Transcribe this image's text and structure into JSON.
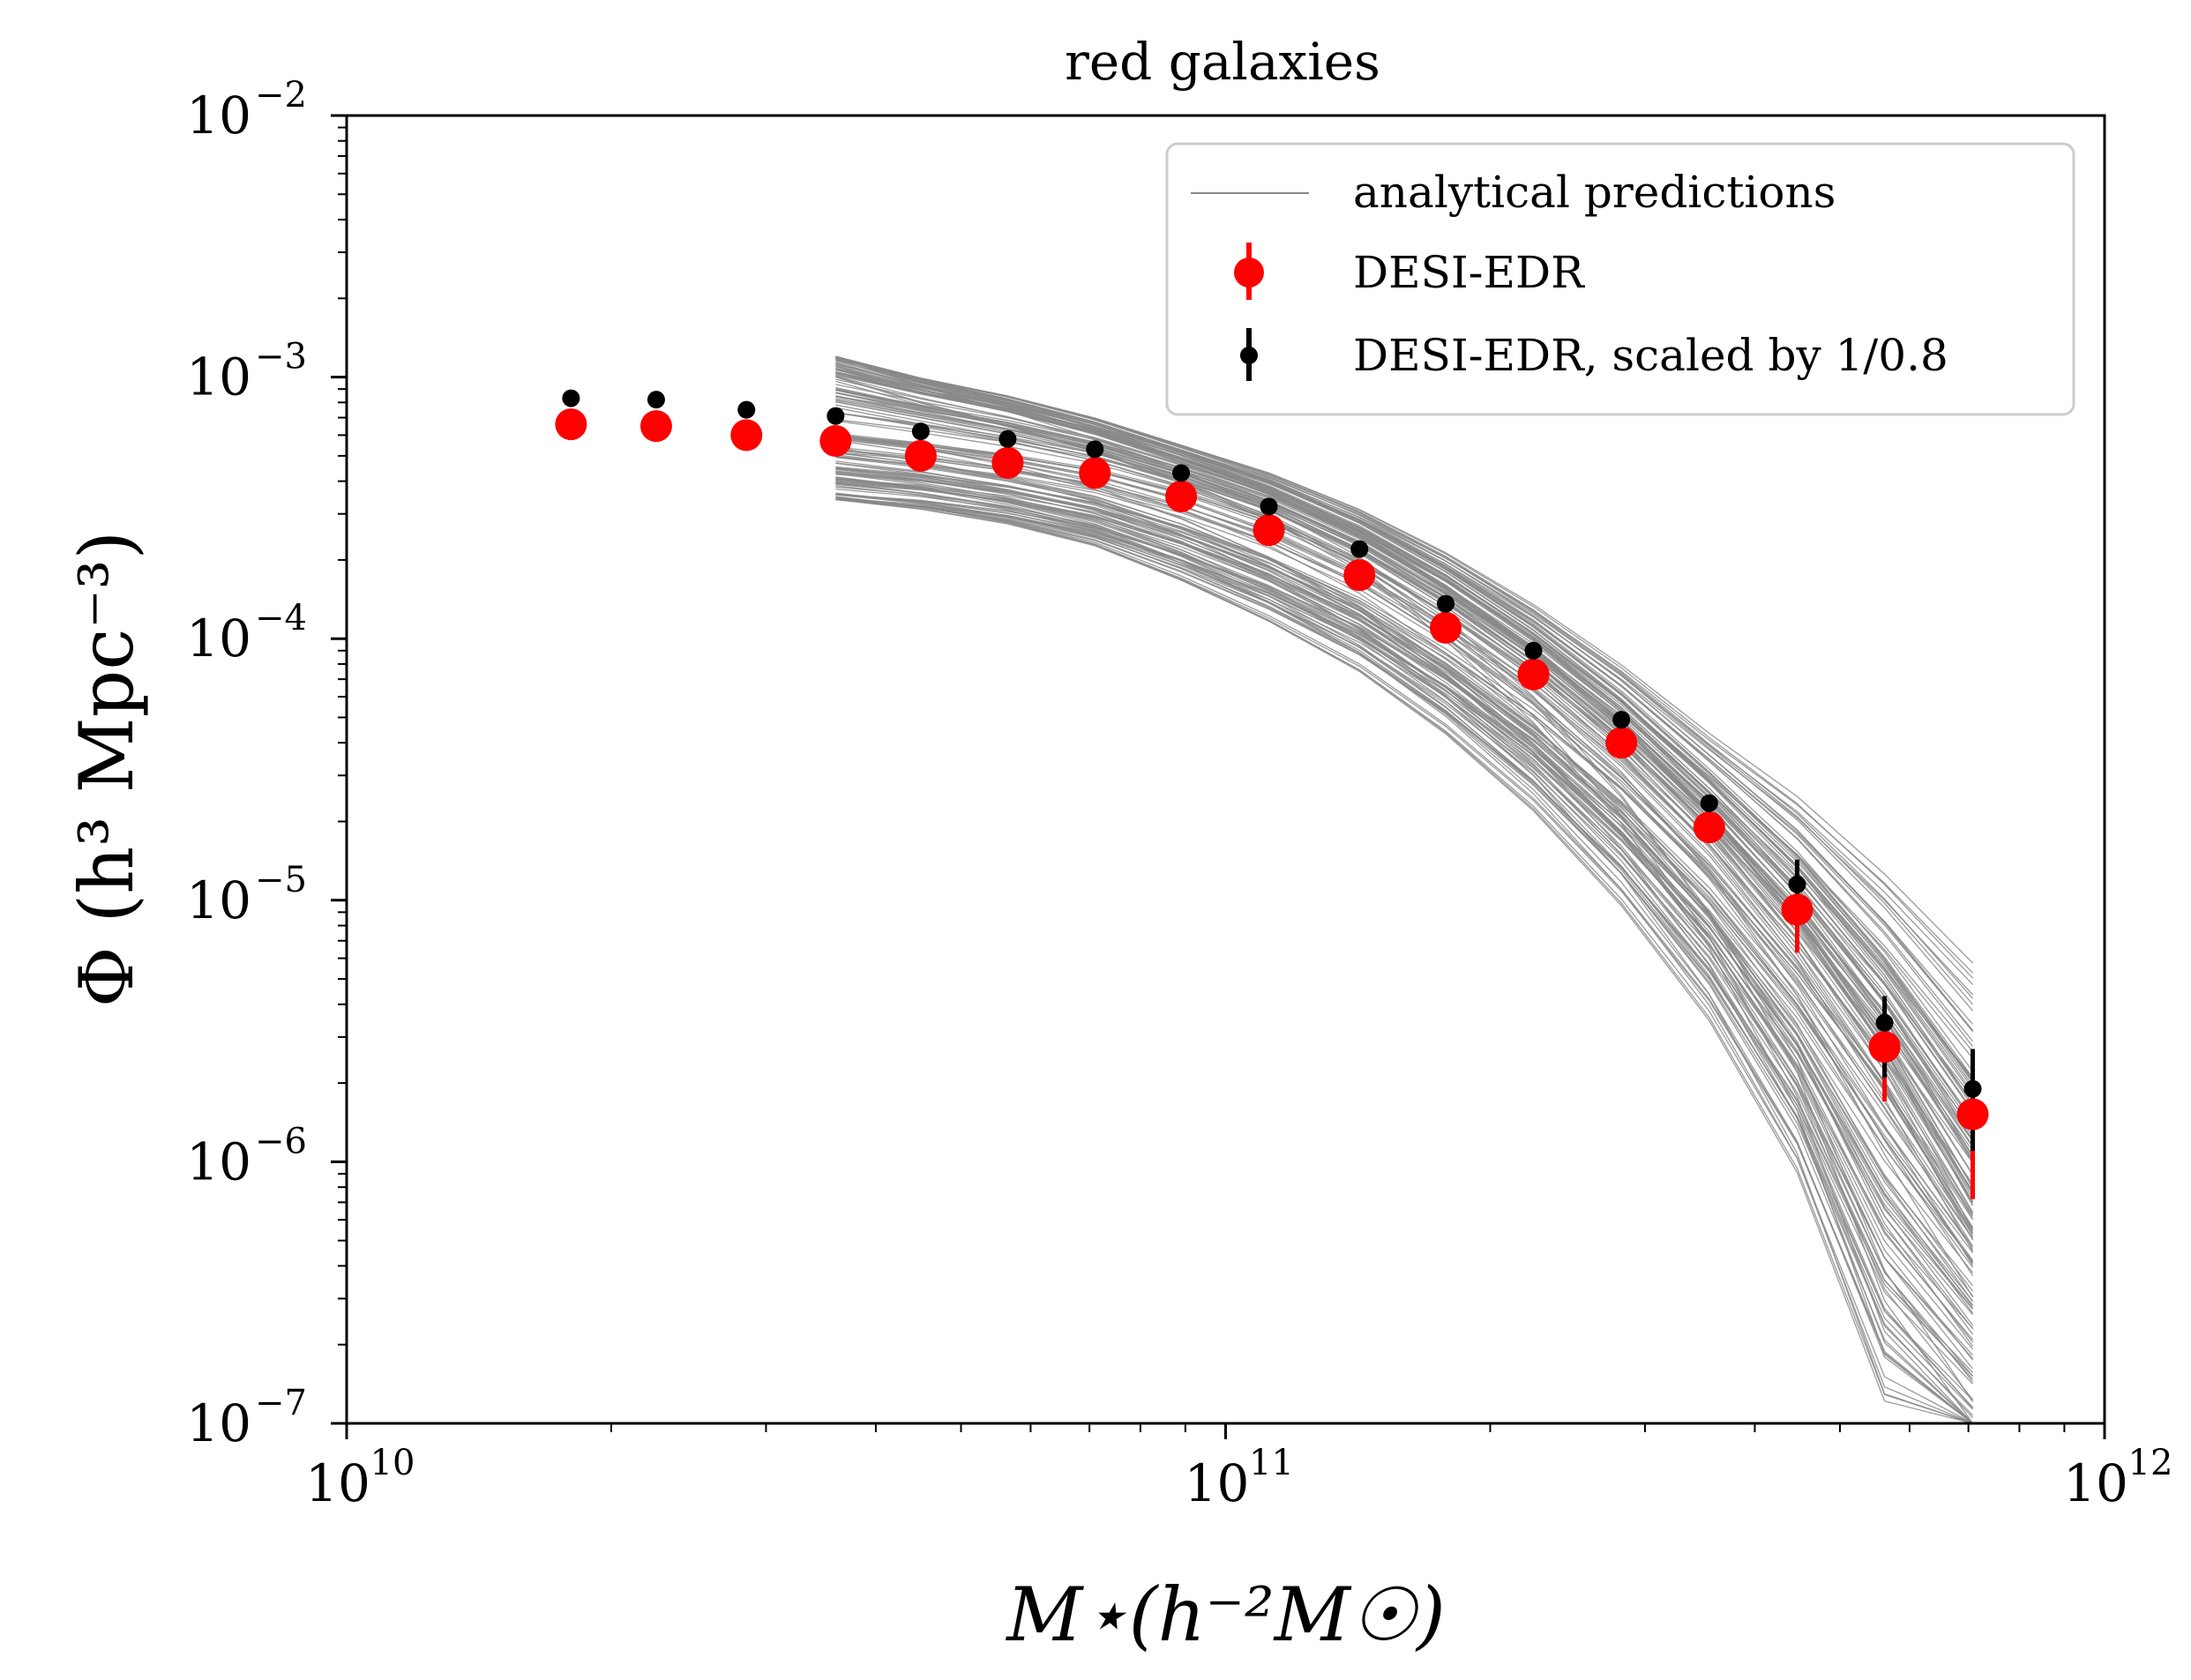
{
  "chart_data": {
    "type": "scatter",
    "title": "red galaxies",
    "xlabel": "M⋆(h⁻²M☉)",
    "ylabel": "Φ (h³ Mpc⁻³)",
    "xscale": "log",
    "yscale": "log",
    "xlim": [
      10000000000.0,
      1000000000000.0
    ],
    "ylim": [
      1e-07,
      0.01
    ],
    "grid": false,
    "legend_position": "top-right",
    "x_ticks": [
      {
        "value": 10000000000.0,
        "base": "10",
        "exp": "10"
      },
      {
        "value": 100000000000.0,
        "base": "10",
        "exp": "11"
      },
      {
        "value": 1000000000000.0,
        "base": "10",
        "exp": "12"
      }
    ],
    "y_ticks": [
      {
        "value": 1e-07,
        "base": "10",
        "exp": "−7"
      },
      {
        "value": 1e-06,
        "base": "10",
        "exp": "−6"
      },
      {
        "value": 1e-05,
        "base": "10",
        "exp": "−5"
      },
      {
        "value": 0.0001,
        "base": "10",
        "exp": "−4"
      },
      {
        "value": 0.001,
        "base": "10",
        "exp": "−3"
      },
      {
        "value": 0.01,
        "base": "10",
        "exp": "−2"
      }
    ],
    "legend": [
      {
        "label": "analytical predictions",
        "series": "analytical"
      },
      {
        "label": "DESI-EDR",
        "series": "desi"
      },
      {
        "label": "DESI-EDR, scaled by 1/0.8",
        "series": "desi_scaled"
      }
    ],
    "colors": {
      "analytical": "#888888",
      "desi": "#ff0000",
      "desi_scaled": "#000000"
    },
    "series": [
      {
        "name": "DESI-EDR",
        "key": "desi",
        "x": [
          18000000000.0,
          22500000000.0,
          28500000000.0,
          36000000000.0,
          45000000000.0,
          56500000000.0,
          71000000000.0,
          89000000000.0,
          112000000000.0,
          142000000000.0,
          178000000000.0,
          224000000000.0,
          282000000000.0,
          355000000000.0,
          447000000000.0,
          562000000000.0,
          708000000000.0
        ],
        "y": [
          0.00066,
          0.00065,
          0.0006,
          0.00057,
          0.0005,
          0.00047,
          0.00043,
          0.00035,
          0.00026,
          0.000175,
          0.00011,
          7.3e-05,
          4e-05,
          1.9e-05,
          9.2e-06,
          2.75e-06,
          1.52e-06
        ],
        "y_err_low": [
          0,
          0,
          0,
          0,
          0,
          0,
          0,
          0,
          0,
          0,
          0,
          0,
          0,
          0,
          2.9e-06,
          1.05e-06,
          8e-07
        ],
        "y_err_high": [
          0,
          0,
          0,
          0,
          0,
          0,
          0,
          0,
          0,
          0,
          0,
          0,
          0,
          0,
          3.5e-06,
          6e-07,
          4.5e-07
        ]
      },
      {
        "name": "DESI-EDR, scaled by 1/0.8",
        "key": "desi_scaled",
        "x": [
          18000000000.0,
          22500000000.0,
          28500000000.0,
          36000000000.0,
          45000000000.0,
          56500000000.0,
          71000000000.0,
          89000000000.0,
          112000000000.0,
          142000000000.0,
          178000000000.0,
          224000000000.0,
          282000000000.0,
          355000000000.0,
          447000000000.0,
          562000000000.0,
          708000000000.0
        ],
        "y": [
          0.00083,
          0.00082,
          0.00075,
          0.00071,
          0.00062,
          0.00058,
          0.00053,
          0.00043,
          0.00032,
          0.00022,
          0.000136,
          9e-05,
          4.9e-05,
          2.35e-05,
          1.15e-05,
          3.4e-06,
          1.9e-06
        ],
        "y_err_low": [
          0,
          0,
          0,
          0,
          0,
          0,
          0,
          0,
          0,
          0,
          0,
          0,
          0,
          0,
          3.2e-06,
          1.3e-06,
          8e-07
        ],
        "y_err_high": [
          0,
          0,
          0,
          0,
          0,
          0,
          0,
          0,
          0,
          0,
          0,
          0,
          0,
          0,
          2.8e-06,
          9e-07,
          8e-07
        ]
      },
      {
        "name": "analytical predictions",
        "key": "analytical",
        "x": [
          36000000000.0,
          45000000000.0,
          56500000000.0,
          71000000000.0,
          89000000000.0,
          112000000000.0,
          142000000000.0,
          178000000000.0,
          224000000000.0,
          282000000000.0,
          355000000000.0,
          447000000000.0,
          562000000000.0,
          708000000000.0
        ],
        "y_center": [
          0.00061,
          0.00056,
          0.0005,
          0.000435,
          0.000355,
          0.00027,
          0.000185,
          0.000115,
          6.6e-05,
          3.4e-05,
          1.55e-05,
          6e-06,
          2e-06,
          5.5e-07
        ],
        "y_upper_envelope": [
          0.0012,
          0.001,
          0.00086,
          0.00071,
          0.00056,
          0.00044,
          0.00032,
          0.00022,
          0.00014,
          8.3e-05,
          4.6e-05,
          2.7e-05,
          1.4e-05,
          6.6e-06
        ],
        "y_lower_envelope": [
          0.00034,
          0.00031,
          0.00027,
          0.00022,
          0.00016,
          0.00011,
          7e-05,
          4e-05,
          2e-05,
          8.5e-06,
          3e-06,
          7.5e-07,
          9e-08,
          5e-08
        ],
        "n_curves": 150
      }
    ]
  }
}
